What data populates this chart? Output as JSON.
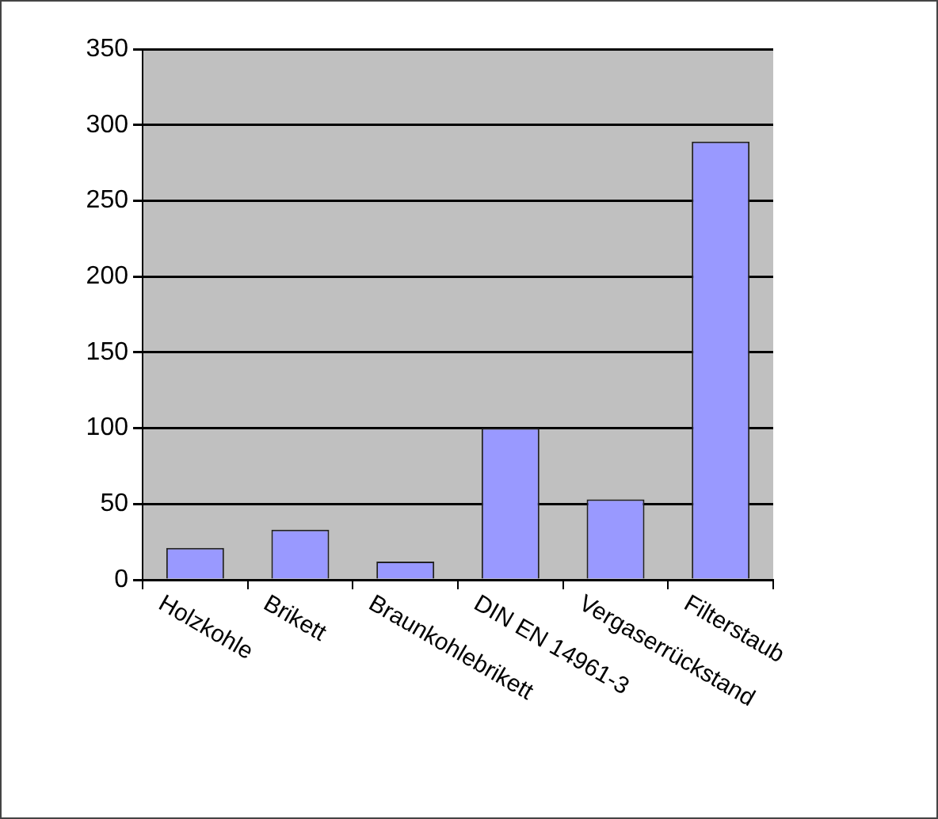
{
  "chart_data": {
    "type": "bar",
    "categories": [
      "Holzkohle",
      "Brikett",
      "Braunkohlebrikett",
      "DIN EN 14961-3",
      "Vergaserrückstand",
      "Filterstaub"
    ],
    "values": [
      21,
      33,
      12,
      100,
      53,
      289
    ],
    "color": "#9999ff",
    "ylim": [
      0,
      350
    ],
    "yticks": [
      0,
      50,
      100,
      150,
      200,
      250,
      300,
      350
    ],
    "grid": "y",
    "legend": false
  }
}
